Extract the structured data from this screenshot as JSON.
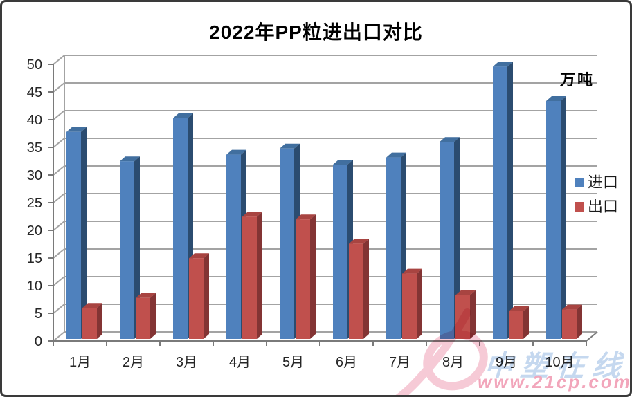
{
  "title": "2022年PP粒进出口对比",
  "unit_label": "万吨",
  "watermark": {
    "brand": "中塑在线",
    "url": "www.21cp.com"
  },
  "chart_data": {
    "type": "bar",
    "style": "3d-clustered",
    "title": "2022年PP粒进出口对比",
    "unit": "万吨",
    "categories": [
      "1月",
      "2月",
      "3月",
      "4月",
      "5月",
      "6月",
      "7月",
      "8月",
      "9月",
      "10月"
    ],
    "series": [
      {
        "name": "进口",
        "color": "#4f81bd",
        "top_color": "#416f9f",
        "side_color": "#2b4c70",
        "values": [
          37.4,
          32.1,
          39.9,
          33.3,
          34.4,
          31.5,
          32.8,
          35.6,
          49.2,
          43.0
        ]
      },
      {
        "name": "出口",
        "color": "#c0504d",
        "top_color": "#a84441",
        "side_color": "#833434",
        "values": [
          5.6,
          7.4,
          14.6,
          22.1,
          21.6,
          17.2,
          11.8,
          7.9,
          5.0,
          5.3
        ]
      }
    ],
    "ylim": [
      0,
      50
    ],
    "ytick_step": 5,
    "yticks": [
      0,
      5,
      10,
      15,
      20,
      25,
      30,
      35,
      40,
      45,
      50
    ],
    "grid": true,
    "grid_color": "#a3a3a3",
    "axis_color": "#7a7a7a",
    "legend_position": "right"
  }
}
